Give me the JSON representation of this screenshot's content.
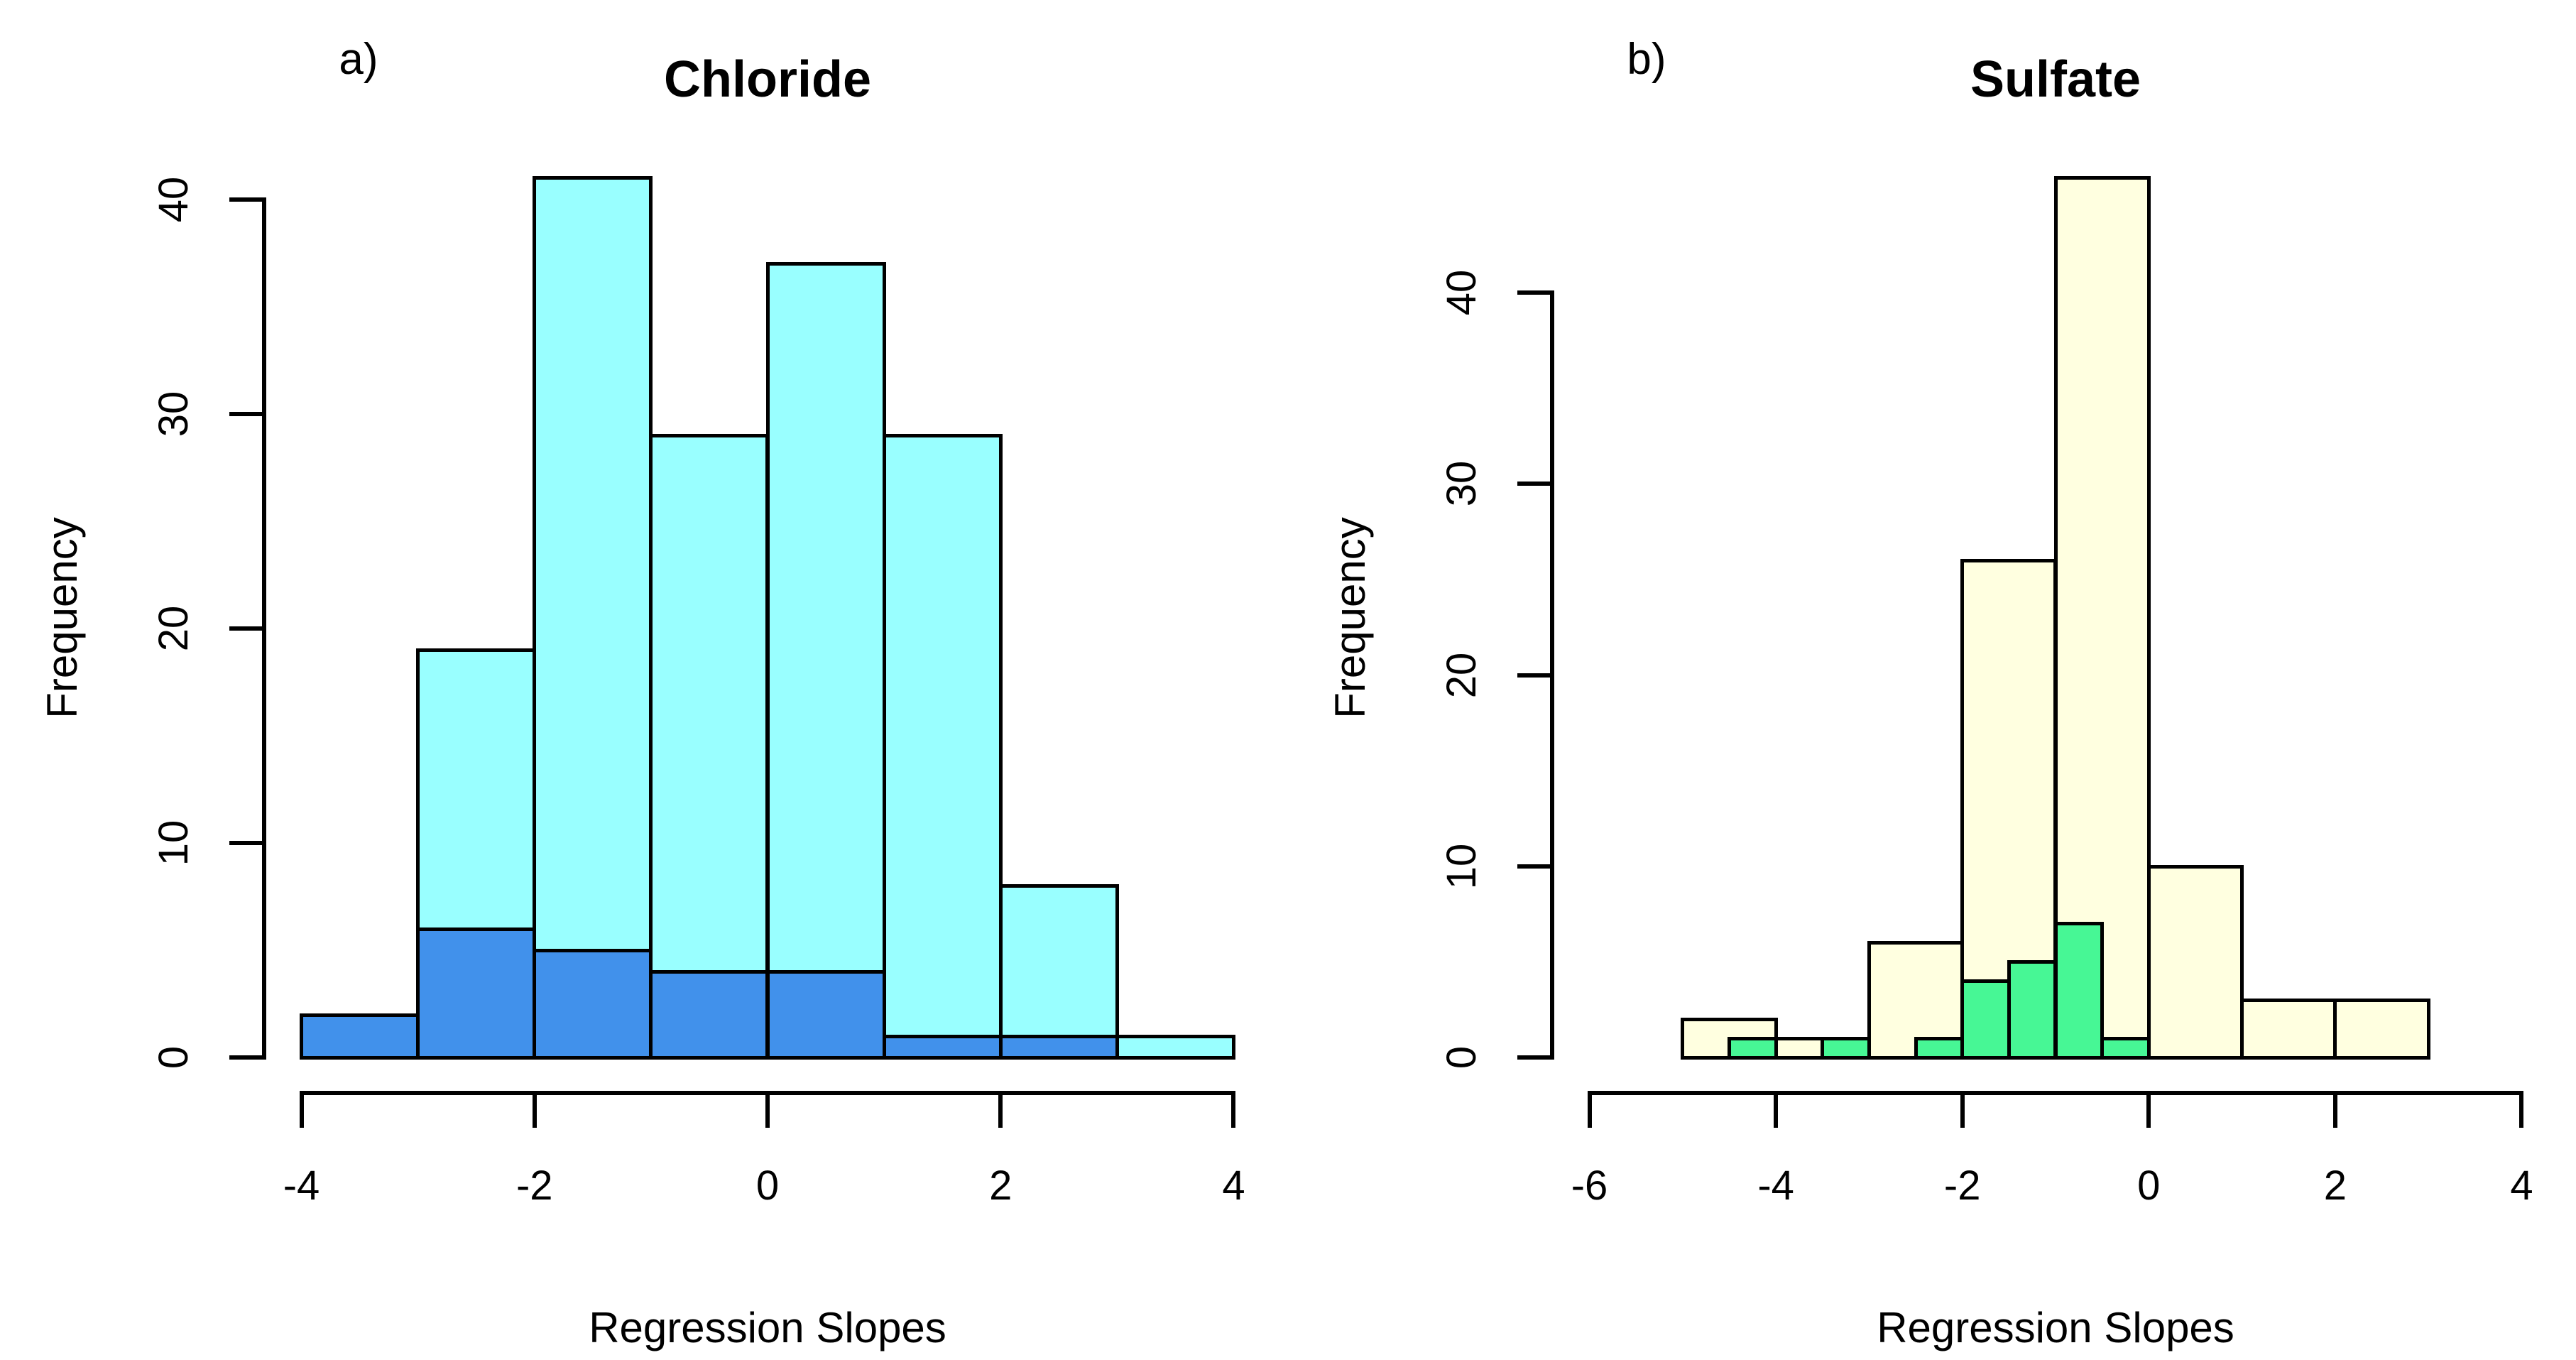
{
  "figure": {
    "background": "#FFFFFF",
    "stroke_color": "#000000"
  },
  "chart_data": [
    {
      "type": "histogram",
      "panel_label": "a)",
      "title": "Chloride",
      "xlabel": "Regression Slopes",
      "ylabel": "Frequency",
      "xlim": [
        -4,
        4
      ],
      "ylim": [
        0,
        41
      ],
      "x_ticks": [
        -4,
        -2,
        0,
        2,
        4
      ],
      "y_ticks": [
        0,
        10,
        20,
        30,
        40
      ],
      "grid": false,
      "legend": false,
      "series": [
        {
          "name": "chloride-all-sites",
          "color": "#99FFFF",
          "bin_width": 1,
          "bins": [
            {
              "x": -3,
              "count": 19
            },
            {
              "x": -2,
              "count": 41
            },
            {
              "x": -1,
              "count": 29
            },
            {
              "x": 0,
              "count": 37
            },
            {
              "x": 1,
              "count": 29
            },
            {
              "x": 2,
              "count": 8
            },
            {
              "x": 3,
              "count": 1
            }
          ]
        },
        {
          "name": "chloride-highlight",
          "color": "#4191EB",
          "bin_width": 1,
          "bins": [
            {
              "x": -4,
              "count": 2
            },
            {
              "x": -3,
              "count": 6
            },
            {
              "x": -2,
              "count": 5
            },
            {
              "x": -1,
              "count": 4
            },
            {
              "x": 0,
              "count": 4
            },
            {
              "x": 1,
              "count": 1
            },
            {
              "x": 2,
              "count": 1
            }
          ]
        }
      ]
    },
    {
      "type": "histogram",
      "panel_label": "b)",
      "title": "Sulfate",
      "xlabel": "Regression Slopes",
      "ylabel": "Frequency",
      "xlim": [
        -6,
        4
      ],
      "ylim": [
        0,
        46
      ],
      "x_ticks": [
        -6,
        -4,
        -2,
        0,
        2,
        4
      ],
      "y_ticks": [
        0,
        10,
        20,
        30,
        40
      ],
      "grid": false,
      "legend": false,
      "series": [
        {
          "name": "sulfate-all-sites",
          "color": "#FFFFE0",
          "bin_width": 1,
          "bins": [
            {
              "x": -5,
              "count": 2
            },
            {
              "x": -4,
              "count": 1
            },
            {
              "x": -3,
              "count": 6
            },
            {
              "x": -2,
              "count": 26
            },
            {
              "x": -1,
              "count": 46
            },
            {
              "x": 0,
              "count": 10
            },
            {
              "x": 1,
              "count": 3
            },
            {
              "x": 2,
              "count": 3
            }
          ]
        },
        {
          "name": "sulfate-highlight",
          "color": "#47F795",
          "bin_width": 0.5,
          "bins": [
            {
              "x": -4.5,
              "count": 1
            },
            {
              "x": -3.5,
              "count": 1
            },
            {
              "x": -2.5,
              "count": 1
            },
            {
              "x": -2,
              "count": 4
            },
            {
              "x": -1.5,
              "count": 5
            },
            {
              "x": -1,
              "count": 7
            },
            {
              "x": -0.5,
              "count": 1
            }
          ]
        }
      ]
    }
  ]
}
